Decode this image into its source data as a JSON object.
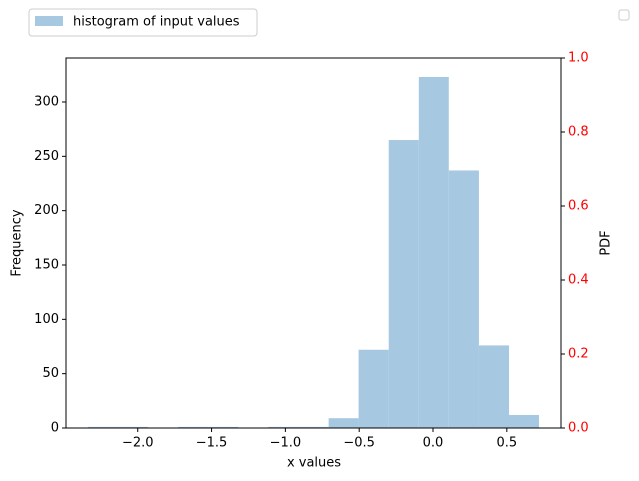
{
  "chart_data": {
    "type": "histogram",
    "xlabel": "x values",
    "ylabel": "Frequency",
    "y2label": "PDF",
    "bins": [
      -2.337,
      -2.133,
      -1.93,
      -1.726,
      -1.522,
      -1.319,
      -1.115,
      -0.911,
      -0.707,
      -0.504,
      -0.3,
      -0.096,
      0.107,
      0.311,
      0.515,
      0.718
    ],
    "series": [
      {
        "name": "histogram of input values",
        "color": "#a6c8e0",
        "values": [
          1,
          1,
          0,
          1,
          1,
          0,
          1,
          1,
          9,
          72,
          265,
          323,
          237,
          76,
          12
        ]
      }
    ],
    "xlim": [
      -2.486,
      0.867
    ],
    "xticks": [
      {
        "value": -2,
        "label": "−2.0"
      },
      {
        "value": -1.5,
        "label": "−1.5"
      },
      {
        "value": -1,
        "label": "−1.0"
      },
      {
        "value": -0.5,
        "label": "−0.5"
      },
      {
        "value": 0,
        "label": "0.0"
      },
      {
        "value": 0.5,
        "label": "0.5"
      }
    ],
    "ylim": [
      0,
      340.5
    ],
    "yticks": [
      0,
      50,
      100,
      150,
      200,
      250,
      300
    ],
    "y2lim": [
      0,
      1
    ],
    "y2ticks": [
      {
        "value": 0,
        "label": "0.0"
      },
      {
        "value": 0.2,
        "label": "0.2"
      },
      {
        "value": 0.4,
        "label": "0.4"
      },
      {
        "value": 0.6,
        "label": "0.6"
      },
      {
        "value": 0.8,
        "label": "0.8"
      },
      {
        "value": 1,
        "label": "1.0"
      }
    ],
    "y2tick_color": "#ff0000"
  }
}
